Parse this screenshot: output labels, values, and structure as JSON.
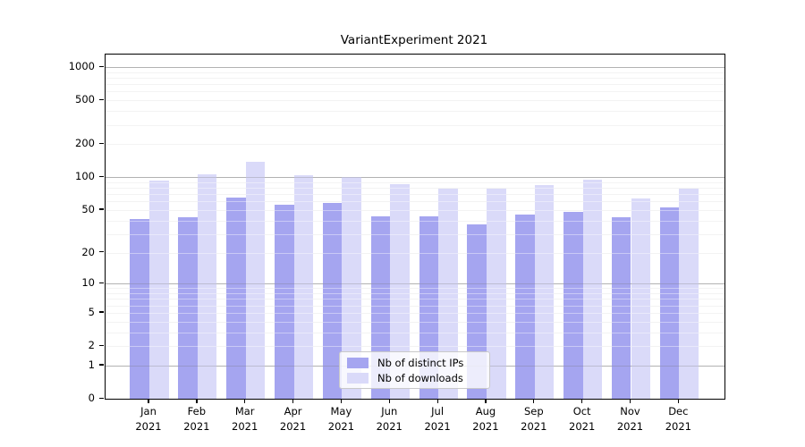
{
  "chart_data": {
    "type": "bar",
    "title": "VariantExperiment 2021",
    "categories": [
      "Jan 2021",
      "Feb 2021",
      "Mar 2021",
      "Apr 2021",
      "May 2021",
      "Jun 2021",
      "Jul 2021",
      "Aug 2021",
      "Sep 2021",
      "Oct 2021",
      "Nov 2021",
      "Dec 2021"
    ],
    "series": [
      {
        "name": "Nb of distinct IPs",
        "color": "#a5a5f0",
        "values": [
          41,
          43,
          65,
          56,
          58,
          44,
          44,
          37,
          45,
          48,
          43,
          53
        ]
      },
      {
        "name": "Nb of downloads",
        "color": "#dadaf9",
        "values": [
          93,
          106,
          137,
          105,
          101,
          87,
          79,
          78,
          85,
          95,
          64,
          79
        ]
      }
    ],
    "y_axis": {
      "scale": "log10(value+1)",
      "tick_labels": [
        "0",
        "1",
        "2",
        "5",
        "10",
        "20",
        "50",
        "100",
        "200",
        "500",
        "1000"
      ],
      "tick_values": [
        0,
        1,
        2,
        5,
        10,
        20,
        50,
        100,
        200,
        500,
        1000
      ],
      "range": [
        0,
        1000
      ]
    },
    "grid": {
      "shown": true,
      "major_values": [
        1,
        10,
        100,
        1000
      ],
      "minor_values": [
        2,
        3,
        4,
        5,
        6,
        7,
        8,
        9,
        20,
        30,
        40,
        50,
        60,
        70,
        80,
        90,
        200,
        300,
        400,
        500,
        600,
        700,
        800,
        900
      ],
      "major_color": "#cccccc",
      "minor_color": "#ececec"
    },
    "legend": {
      "position": "bottom-center"
    },
    "colors": {
      "axis": "#000000",
      "background": "#ffffff",
      "text": "#000000"
    }
  }
}
